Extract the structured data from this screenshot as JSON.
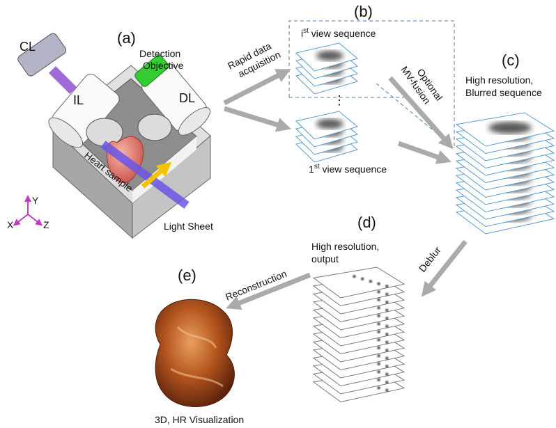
{
  "panel_labels": [
    "(a)",
    "(b)",
    "(c)",
    "(d)",
    "(e)"
  ],
  "setup": {
    "cl": "CL",
    "il": "IL",
    "dl": "DL",
    "detection_objective": [
      "Detection",
      "Objective"
    ],
    "heart_sample": "Heart sample",
    "light_sheet": "Light Sheet",
    "axes": {
      "x": "X",
      "y": "Y",
      "z": "Z"
    }
  },
  "arrows": {
    "acquisition": [
      "Rapid data",
      "acquisition"
    ],
    "fusion": [
      "Optional",
      "MV-fusion"
    ],
    "deblur": "Deblur",
    "reconstruction": "Reconstruction"
  },
  "sequences": {
    "ith": {
      "index": "i",
      "sup": "st",
      "text": " view sequence"
    },
    "first": {
      "index": "1",
      "sup": "st",
      "text": " view sequence"
    }
  },
  "stacks": {
    "blurred": [
      "High resolution,",
      "Blurred sequence"
    ],
    "output": [
      "High resolution,",
      "output"
    ]
  },
  "visualization": "3D, HR Visualization"
}
